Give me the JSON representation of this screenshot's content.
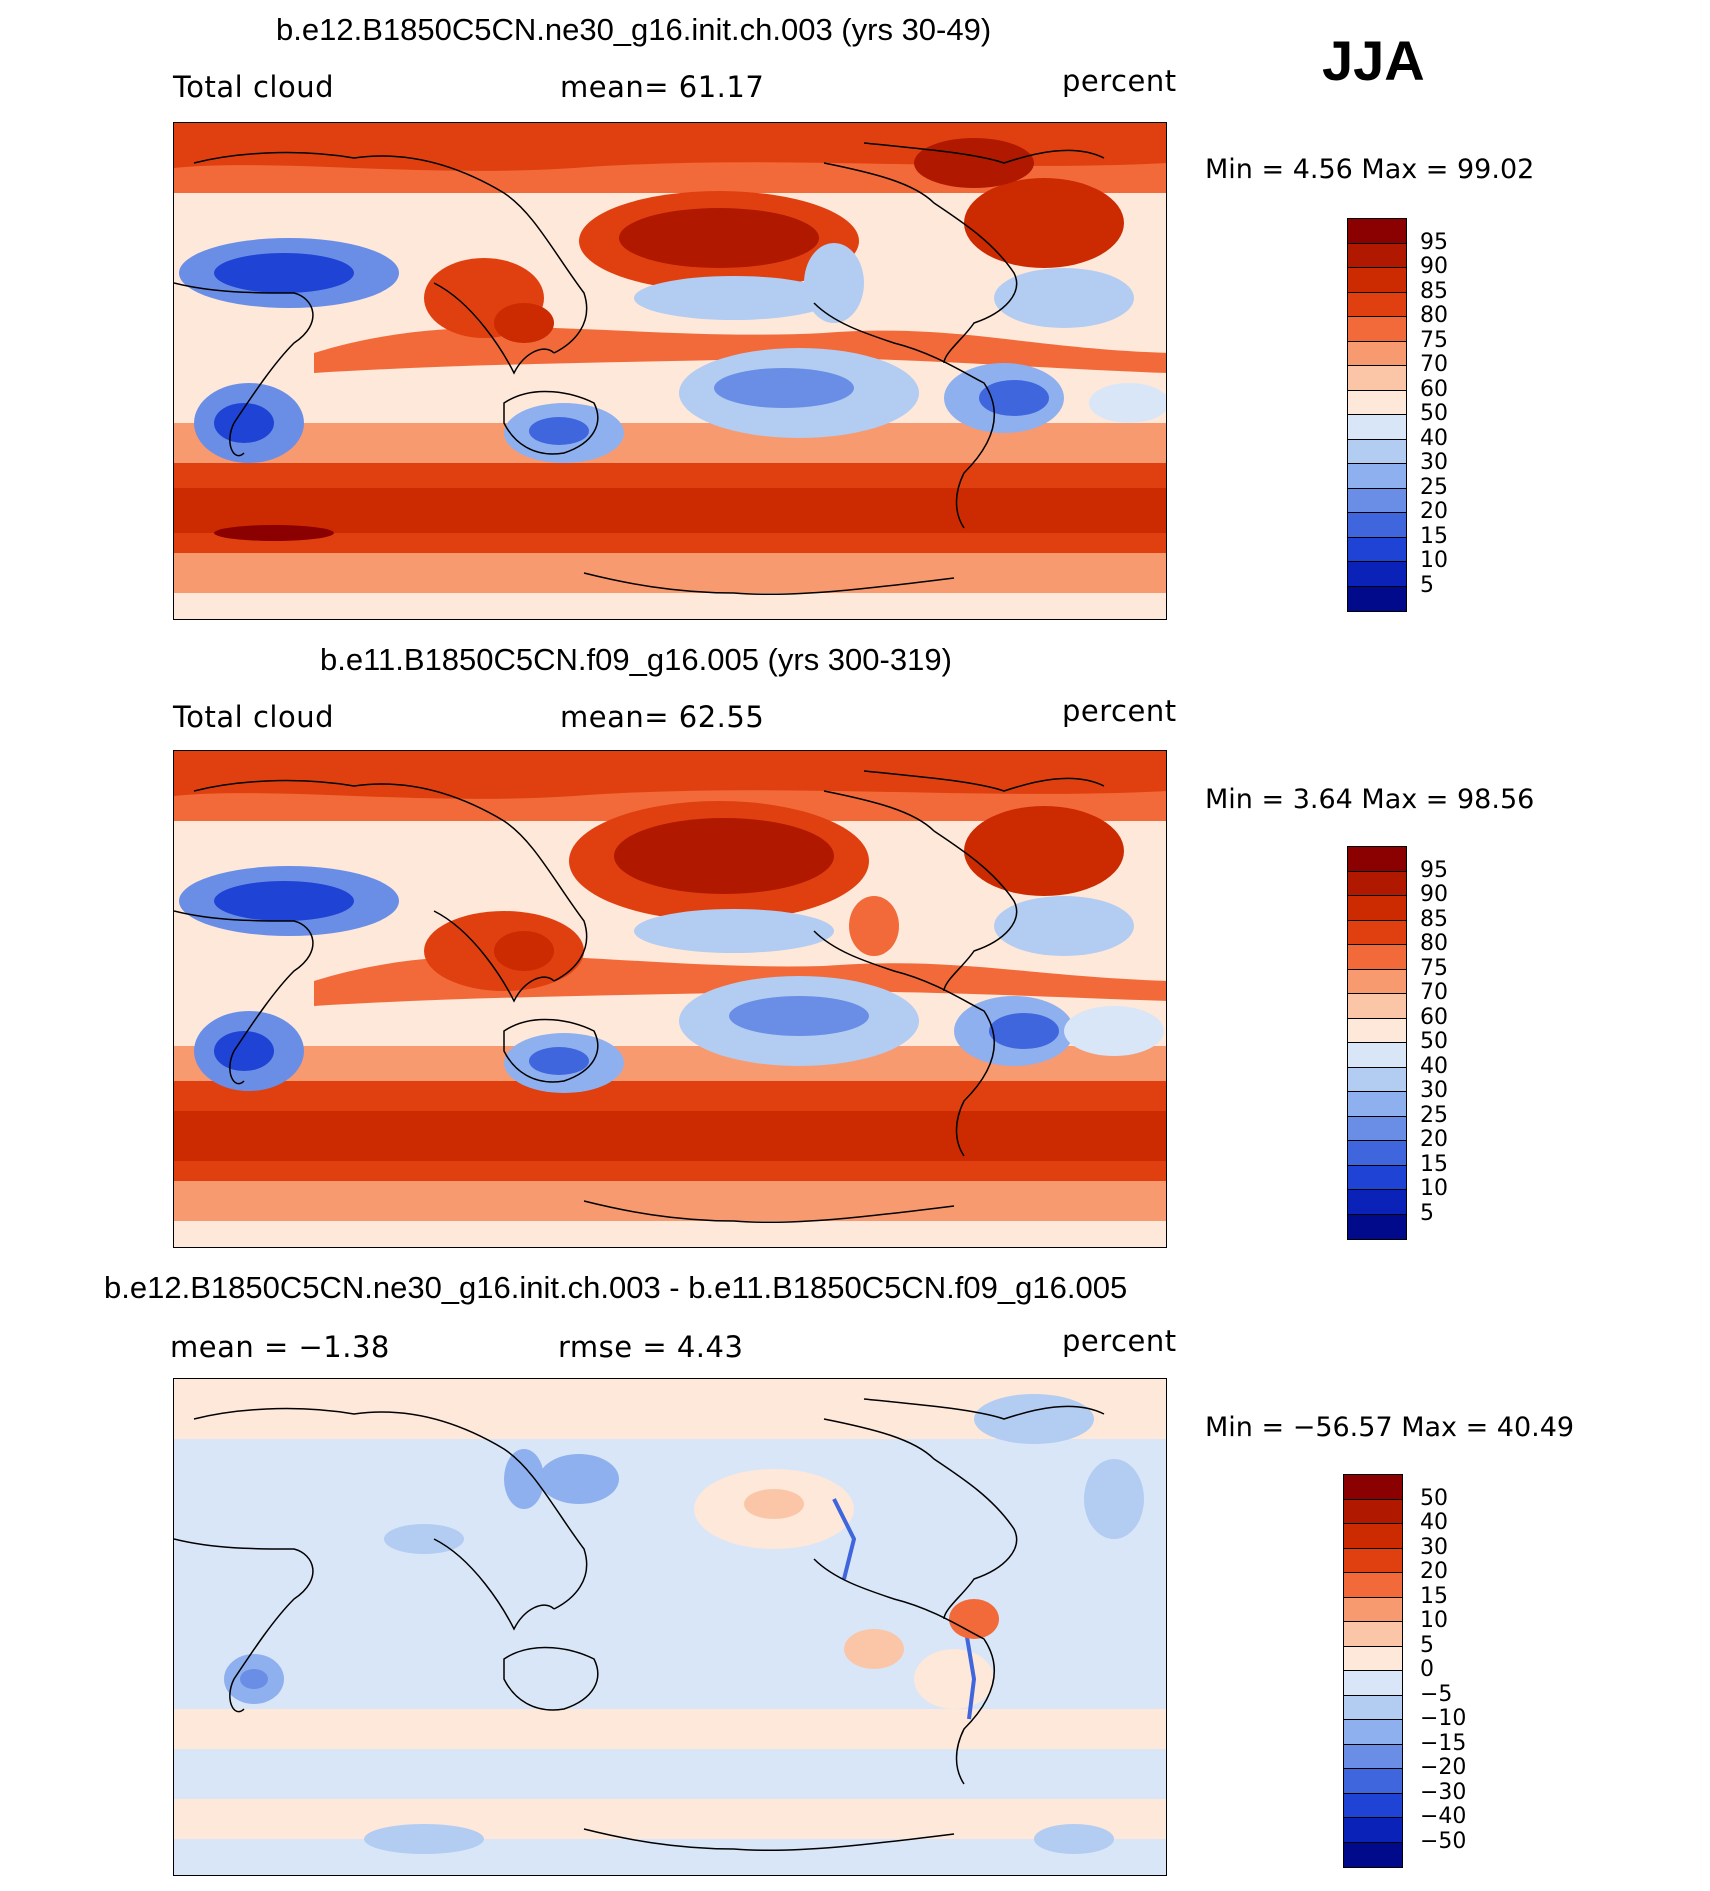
{
  "season": "JJA",
  "panels": [
    {
      "title": "b.e12.B1850C5CN.ne30_g16.init.ch.003 (yrs 30-49)",
      "left": "Total cloud",
      "center": "mean=   61.17",
      "right": "percent",
      "minmax": "Min =    4.56 Max =   99.02"
    },
    {
      "title": "b.e11.B1850C5CN.f09_g16.005 (yrs 300-319)",
      "left": "Total cloud",
      "center": "mean=   62.55",
      "right": "percent",
      "minmax": "Min =    3.64 Max =   98.56"
    },
    {
      "title": "b.e12.B1850C5CN.ne30_g16.init.ch.003 - b.e11.B1850C5CN.f09_g16.005",
      "left": "mean =   −1.38",
      "center": "rmse =    4.43",
      "right": "percent",
      "minmax": "Min = −56.57 Max =   40.49"
    }
  ],
  "colorbar_abs": {
    "labels": [
      "95",
      "90",
      "85",
      "80",
      "75",
      "70",
      "60",
      "50",
      "40",
      "30",
      "25",
      "20",
      "15",
      "10",
      "5"
    ],
    "colors": [
      "#8b0000",
      "#b01800",
      "#cc2a00",
      "#e04010",
      "#f26a3a",
      "#f89a70",
      "#fbc6a8",
      "#fde8da",
      "#d9e6f7",
      "#b3ccf2",
      "#8fb0ee",
      "#6a8ee6",
      "#3f66dd",
      "#1f43d4",
      "#0a22b8",
      "#000a8a"
    ]
  },
  "colorbar_diff": {
    "labels": [
      "50",
      "40",
      "30",
      "20",
      "15",
      "10",
      "5",
      "0",
      "−5",
      "−10",
      "−15",
      "−20",
      "−30",
      "−40",
      "−50"
    ],
    "colors": [
      "#8b0000",
      "#b01800",
      "#cc2a00",
      "#e04010",
      "#f26a3a",
      "#f89a70",
      "#fbc6a8",
      "#fde8da",
      "#d9e6f7",
      "#b3ccf2",
      "#8fb0ee",
      "#6a8ee6",
      "#3f66dd",
      "#1f43d4",
      "#0a22b8",
      "#000a8a"
    ]
  }
}
